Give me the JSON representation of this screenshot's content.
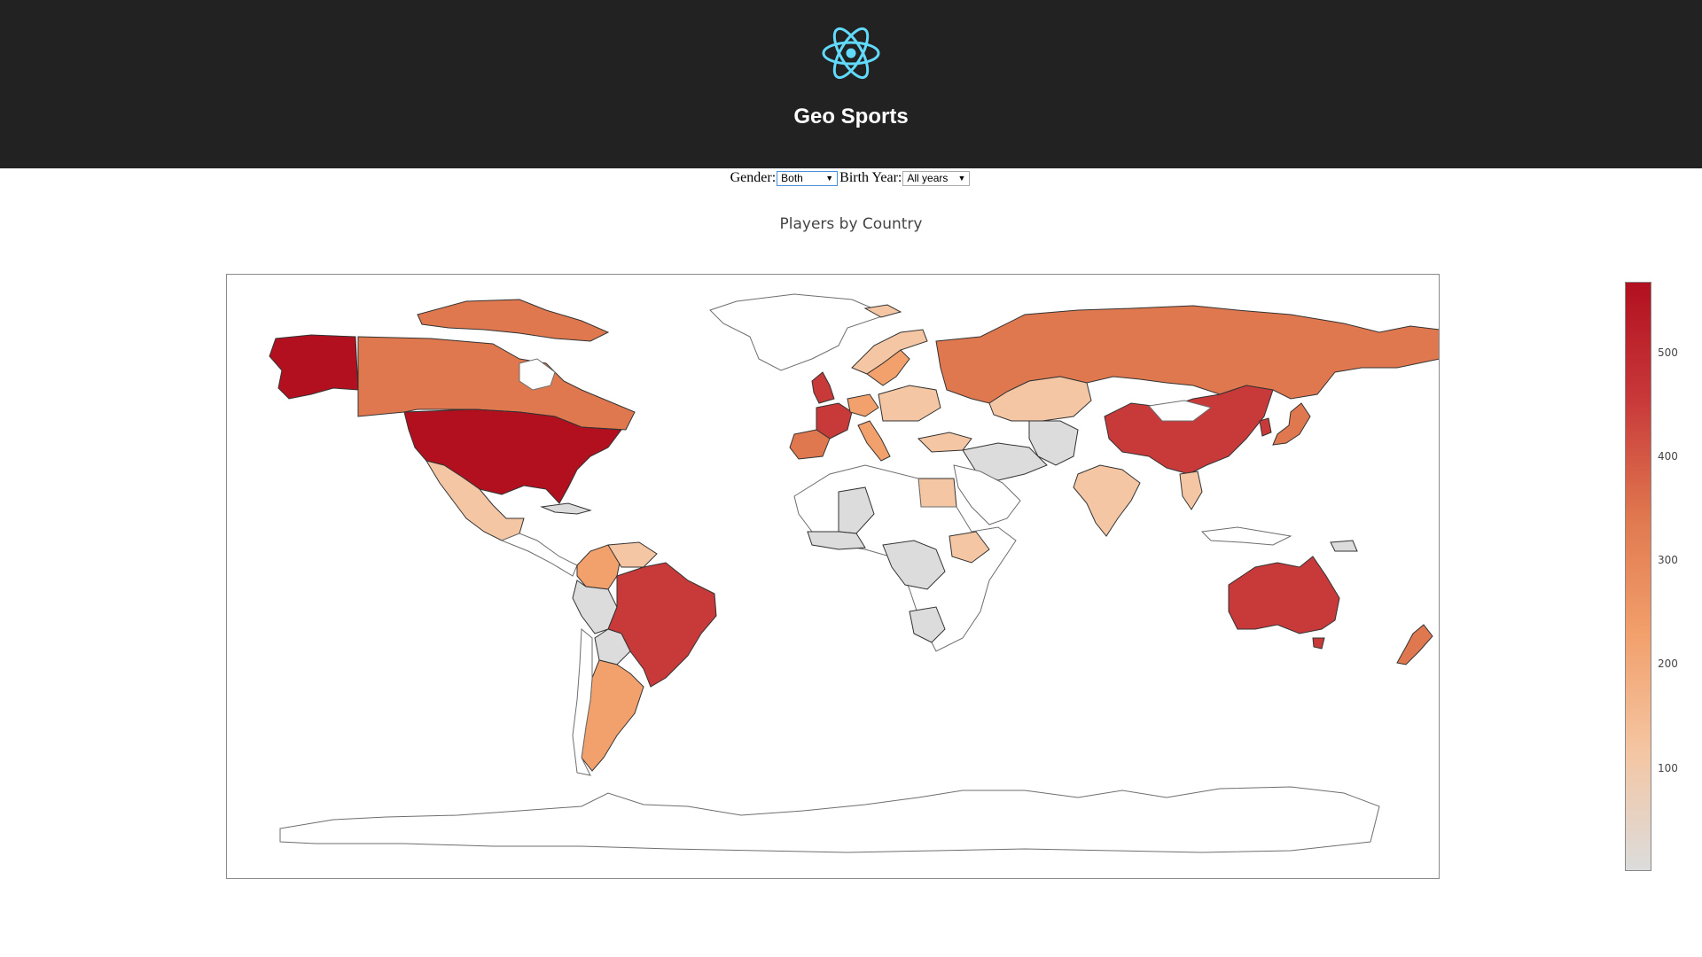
{
  "header": {
    "title": "Geo Sports",
    "logo_icon": "react-atom-icon",
    "background": "#222222",
    "logo_color": "#61dafb"
  },
  "filters": {
    "gender_label": "Gender:",
    "gender_value": "Both",
    "year_label": "Birth Year:",
    "year_value": "All years"
  },
  "chart_data": {
    "type": "choropleth",
    "title": "Players by Country",
    "colorscale": [
      "#dcdcdc",
      "#f4c6a3",
      "#f2a06c",
      "#e0784f",
      "#c8393a",
      "#b2101f"
    ],
    "colorbar": {
      "ticks": [
        100,
        200,
        300,
        400,
        500
      ],
      "range": [
        0,
        560
      ]
    },
    "values": [
      {
        "country": "United States",
        "value": 555
      },
      {
        "country": "Brazil",
        "value": 430
      },
      {
        "country": "Australia",
        "value": 415
      },
      {
        "country": "United Kingdom",
        "value": 430
      },
      {
        "country": "China",
        "value": 380
      },
      {
        "country": "France",
        "value": 390
      },
      {
        "country": "Canada",
        "value": 320
      },
      {
        "country": "Russia",
        "value": 290
      },
      {
        "country": "Spain",
        "value": 340
      },
      {
        "country": "Japan",
        "value": 340
      },
      {
        "country": "Argentina",
        "value": 220
      },
      {
        "country": "New Zealand",
        "value": 270
      },
      {
        "country": "Colombia",
        "value": 190
      },
      {
        "country": "Mexico",
        "value": 150
      },
      {
        "country": "India",
        "value": 150
      },
      {
        "country": "Egypt",
        "value": 180
      },
      {
        "country": "Kazakhstan",
        "value": 130
      },
      {
        "country": "Greenland",
        "value": 0
      }
    ]
  }
}
